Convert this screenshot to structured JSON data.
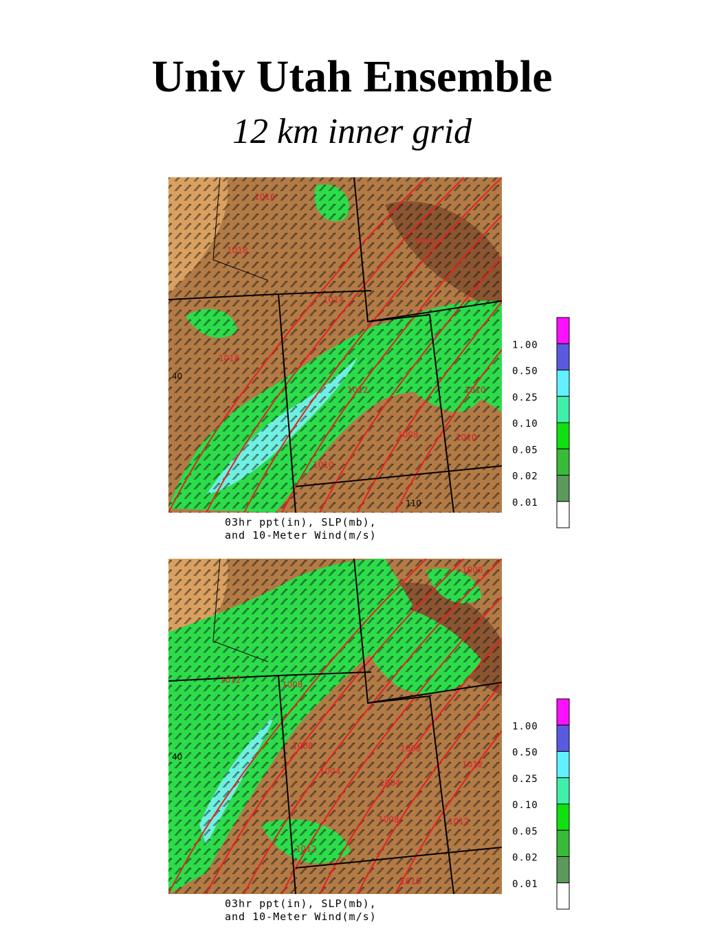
{
  "header": {
    "title": "Univ Utah Ensemble",
    "subtitle": "12 km inner grid"
  },
  "panels": [
    {
      "caption": [
        "03hr ppt(in), SLP(mb),",
        "and 10-Meter Wind(m/s)"
      ],
      "map_labels": [
        "1016",
        "1018",
        "1014",
        "1018",
        "1012",
        "1008",
        "1010",
        "1010",
        "1010",
        "1010",
        "40",
        "110"
      ],
      "legend": [
        "1.00",
        "0.50",
        "0.25",
        "0.10",
        "0.05",
        "0.02",
        "0.01"
      ]
    },
    {
      "caption": [
        "03hr ppt(in), SLP(mb),",
        "and 10-Meter Wind(m/s)"
      ],
      "map_labels": [
        "1008",
        "1012",
        "1008",
        "1008",
        "1004",
        "1004",
        "1008",
        "1012",
        "1008",
        "1012",
        "1012",
        "1010",
        "40"
      ],
      "legend": [
        "1.00",
        "0.50",
        "0.25",
        "0.10",
        "0.05",
        "0.02",
        "0.01"
      ]
    }
  ]
}
